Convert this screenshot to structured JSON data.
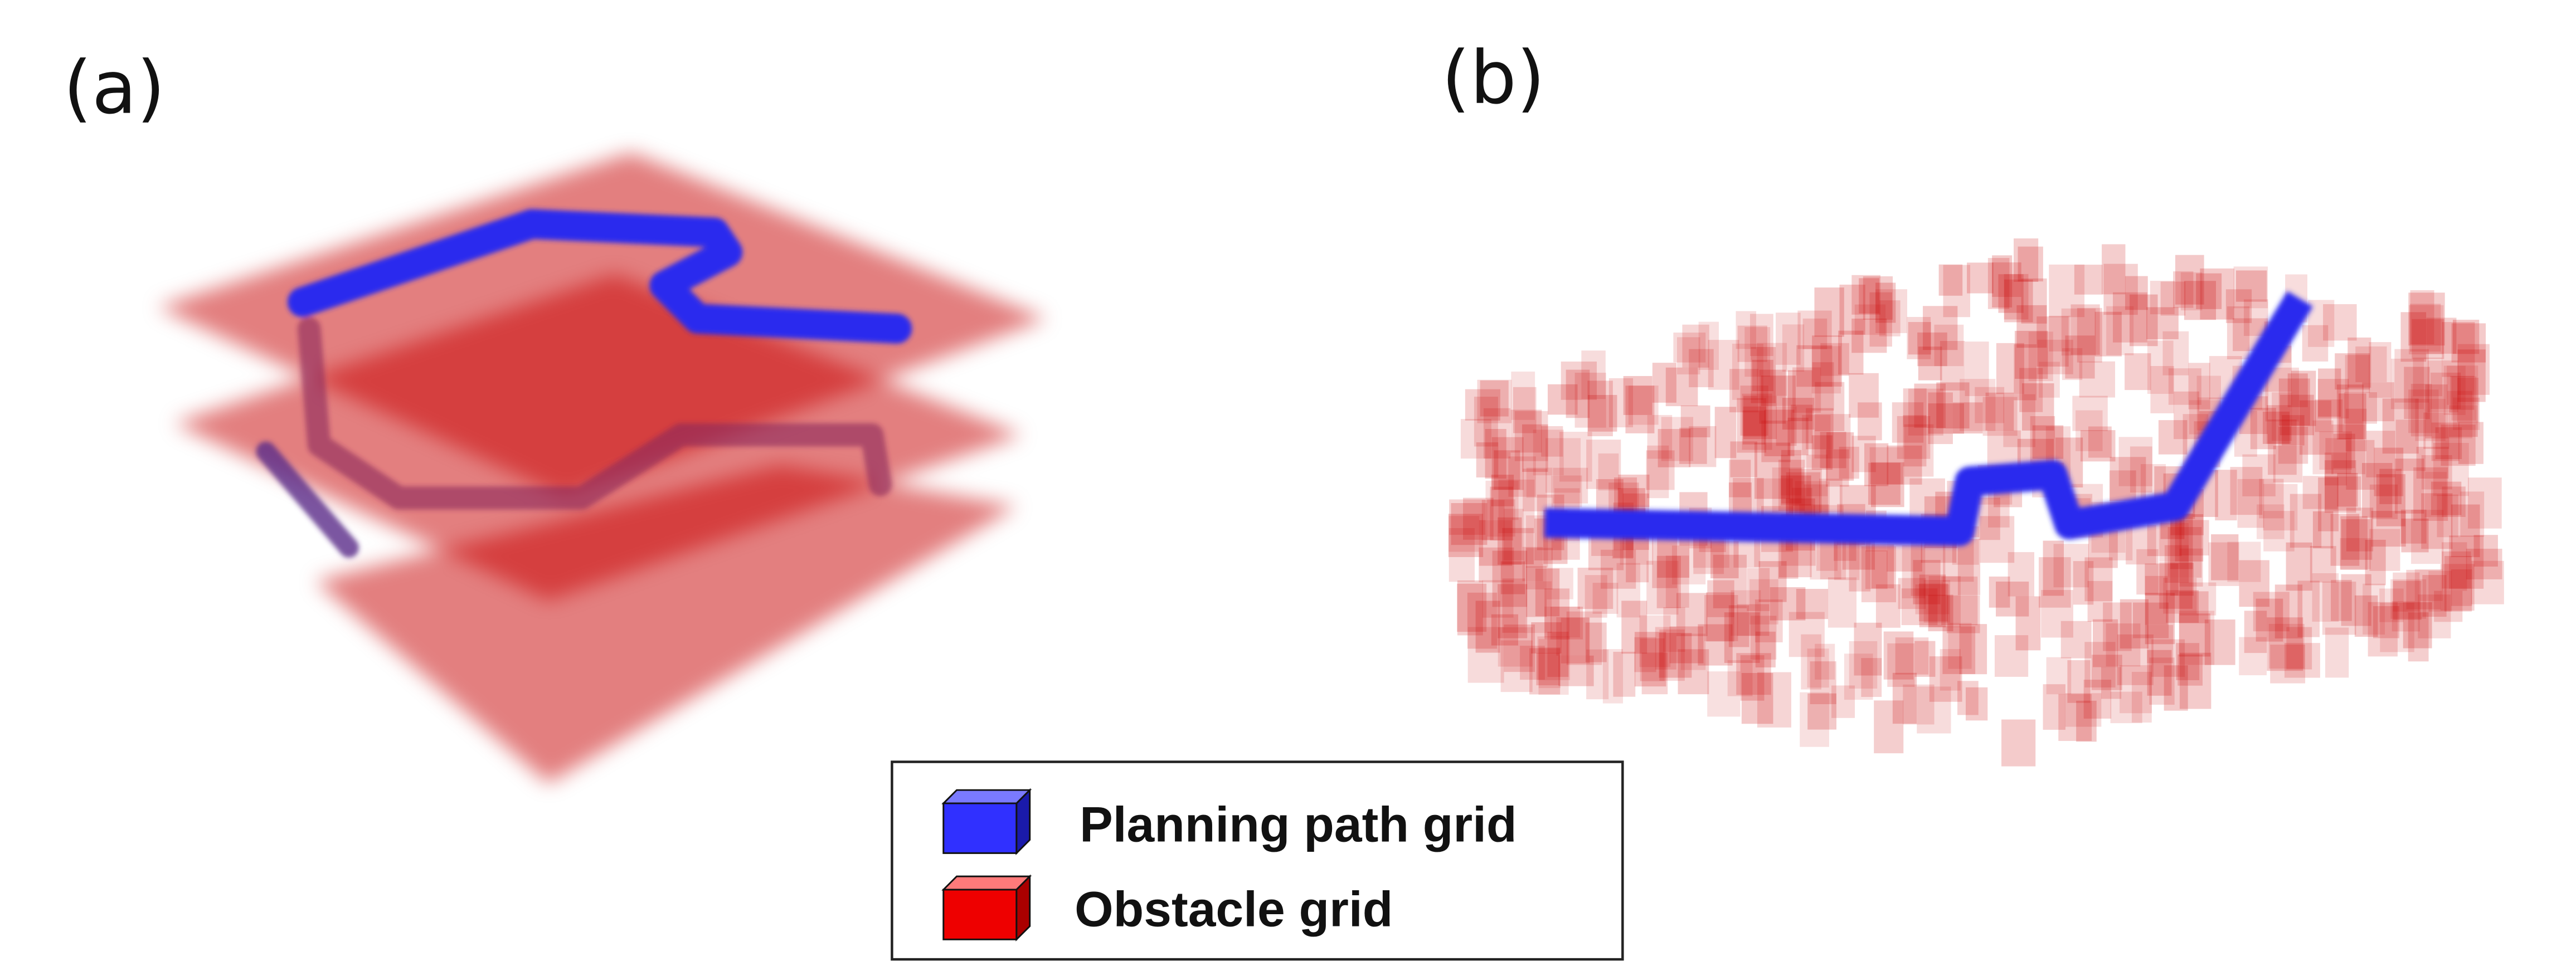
{
  "panels": [
    {
      "label": "(a)"
    },
    {
      "label": "(b)"
    }
  ],
  "legend": {
    "items": [
      {
        "label": "Planning path grid"
      },
      {
        "label": "Obstacle grid"
      }
    ]
  }
}
